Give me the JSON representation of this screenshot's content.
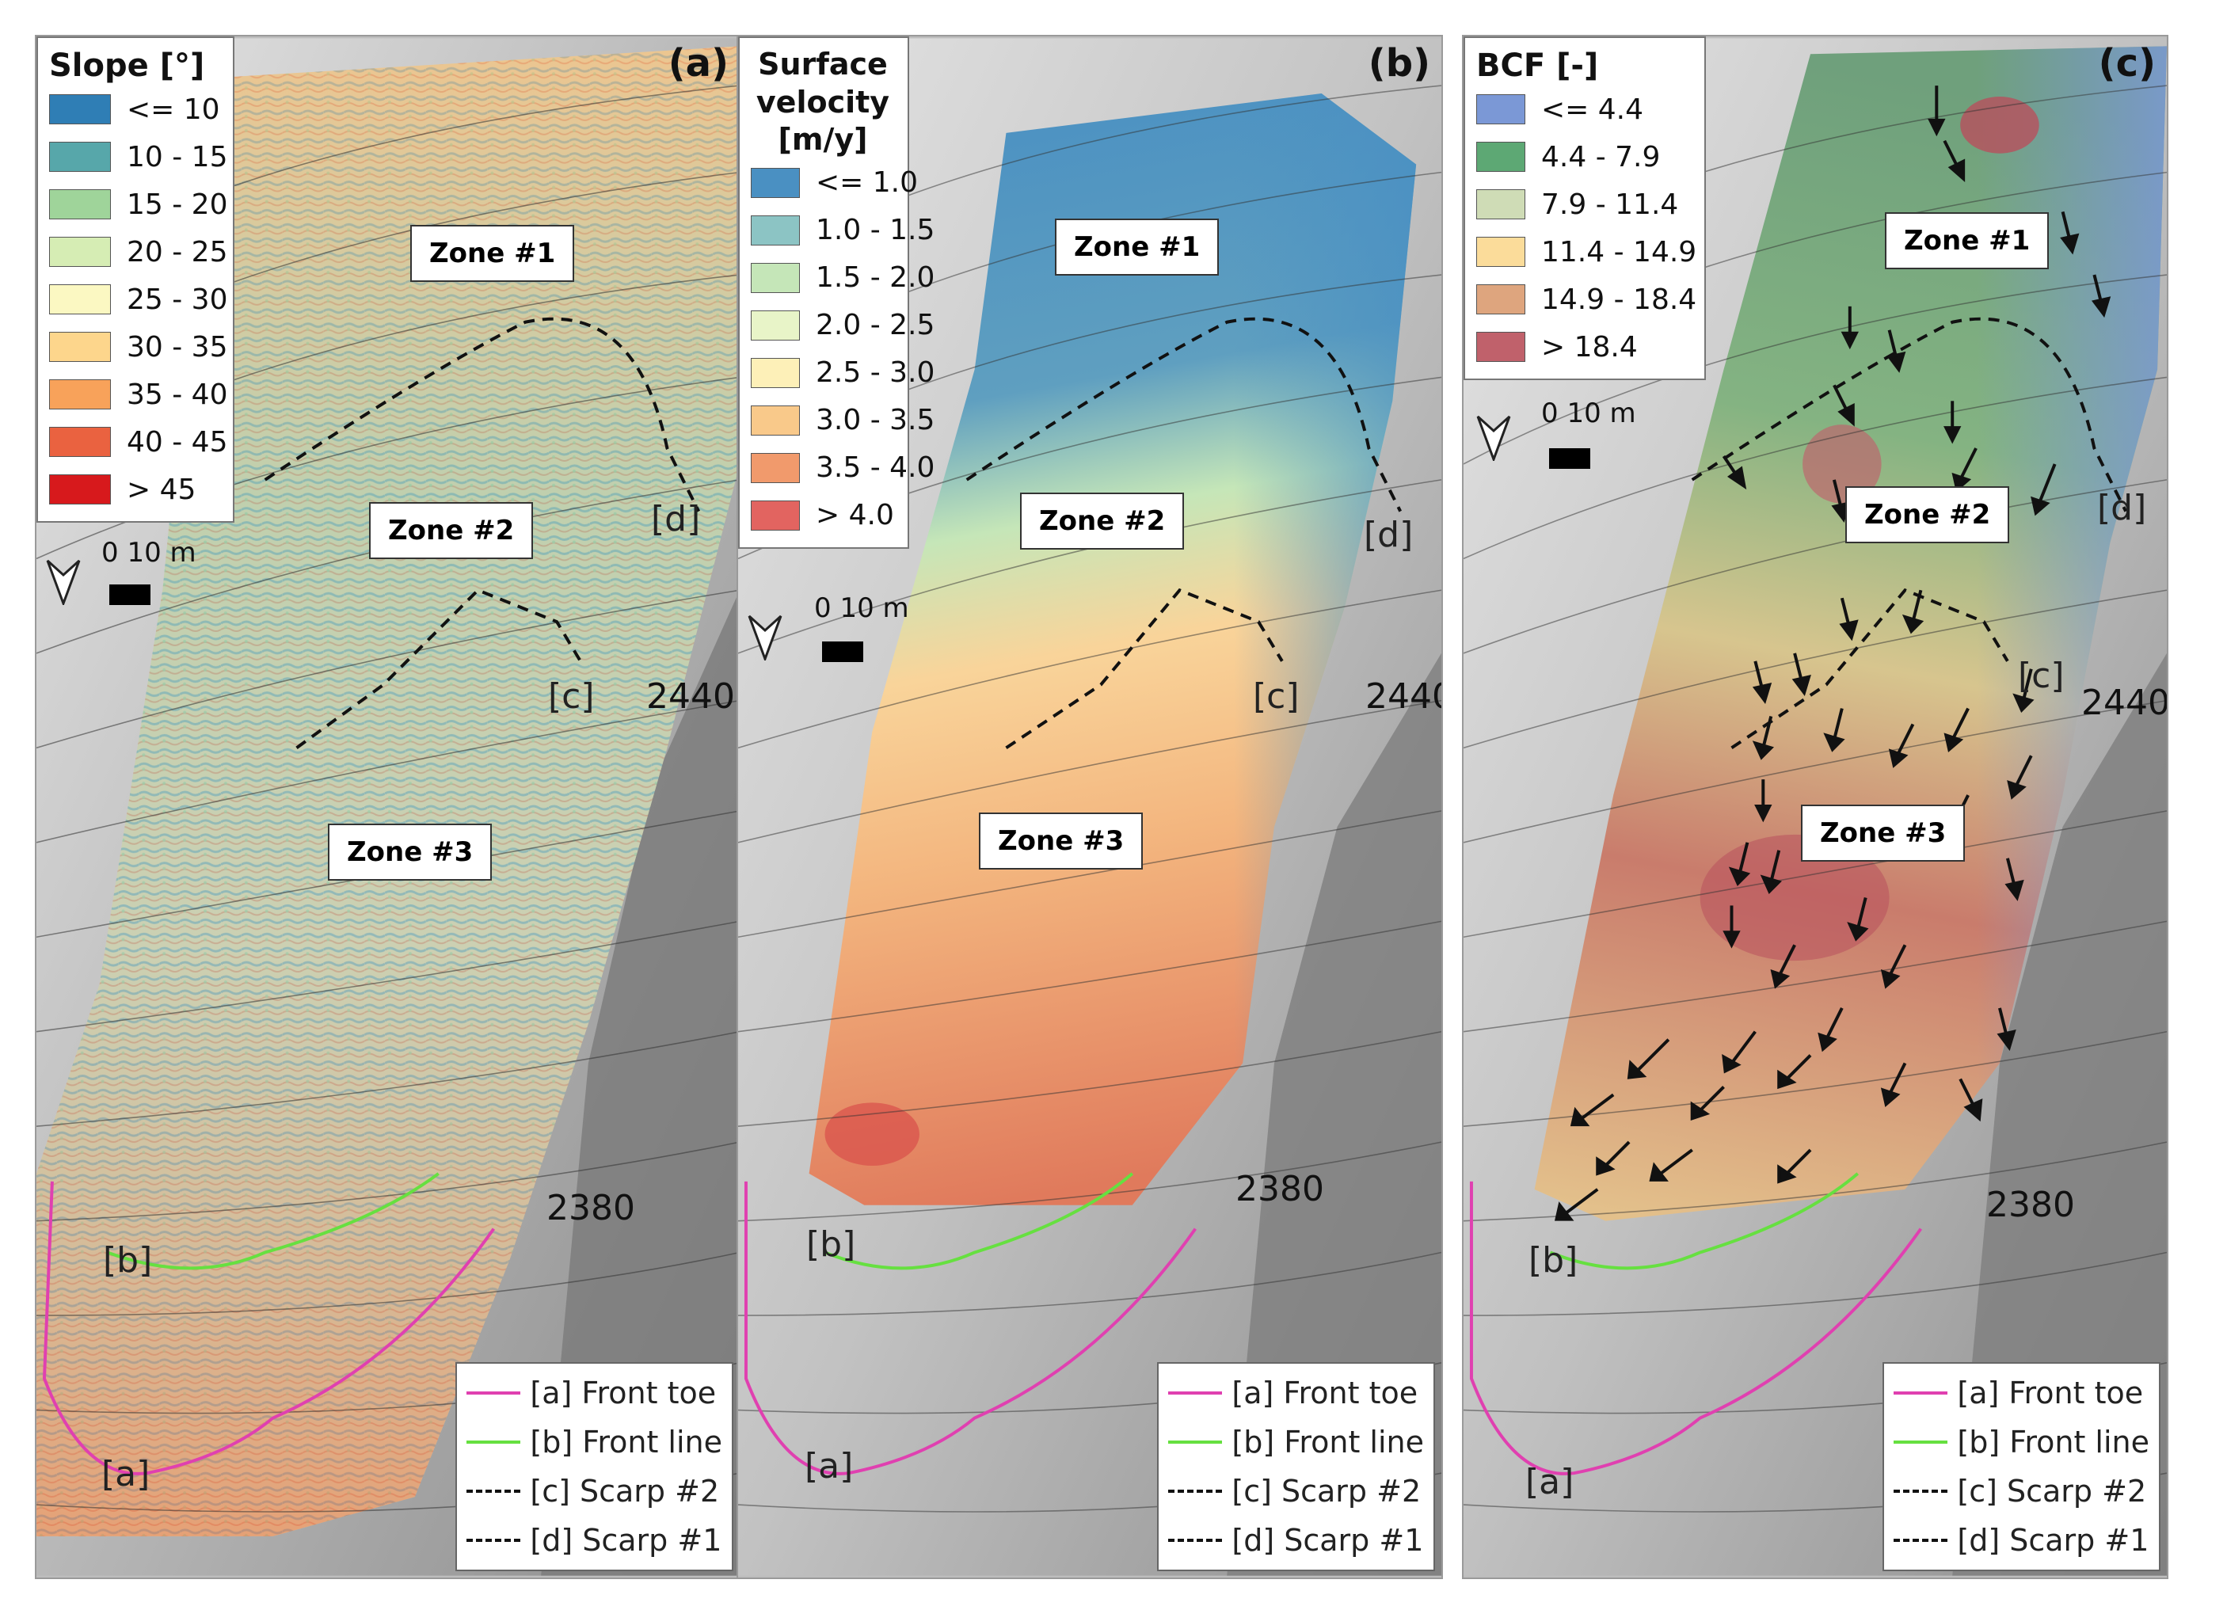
{
  "panels": [
    {
      "letter": "(a)",
      "legend_title": "Slope [°]",
      "legend_items": [
        {
          "label": "<= 10",
          "color": "#2f7eb5"
        },
        {
          "label": "10 - 15",
          "color": "#57a7aa"
        },
        {
          "label": "15 - 20",
          "color": "#9fd49a"
        },
        {
          "label": "20 - 25",
          "color": "#d6edb4"
        },
        {
          "label": "25 - 30",
          "color": "#fbf8c2"
        },
        {
          "label": "30 - 35",
          "color": "#fdd68c"
        },
        {
          "label": "35 - 40",
          "color": "#f8a25a"
        },
        {
          "label": "40 - 45",
          "color": "#ea6240"
        },
        {
          "label": "> 45",
          "color": "#d7191c"
        }
      ],
      "zones": [
        "Zone #1",
        "Zone #2",
        "Zone #3"
      ],
      "markers": [
        "[a]",
        "[b]",
        "[c]",
        "[d]"
      ],
      "elevations": [
        "2440",
        "2380"
      ],
      "scale": "0 10 m",
      "line_legend": [
        "[a] Front toe",
        "[b] Front line",
        "[c] Scarp #2",
        "[d] Scarp #1"
      ]
    },
    {
      "letter": "(b)",
      "legend_title": "Surface velocity [m/y]",
      "legend_items": [
        {
          "label": "<= 1.0",
          "color": "#4a90c2"
        },
        {
          "label": "1.0 - 1.5",
          "color": "#8cc4c4"
        },
        {
          "label": "1.5 - 2.0",
          "color": "#c5e6b8"
        },
        {
          "label": "2.0 - 2.5",
          "color": "#e8f4c8"
        },
        {
          "label": "2.5 - 3.0",
          "color": "#fdf0b8"
        },
        {
          "label": "3.0 - 3.5",
          "color": "#f9c98a"
        },
        {
          "label": "3.5 - 4.0",
          "color": "#f19a6c"
        },
        {
          "label": "> 4.0",
          "color": "#e26460"
        }
      ],
      "zones": [
        "Zone #1",
        "Zone #2",
        "Zone #3"
      ],
      "markers": [
        "[a]",
        "[b]",
        "[c]",
        "[d]"
      ],
      "elevations": [
        "2440",
        "2380"
      ],
      "scale": "0 10 m",
      "line_legend": [
        "[a] Front toe",
        "[b] Front line",
        "[c] Scarp #2",
        "[d] Scarp #1"
      ]
    },
    {
      "letter": "(c)",
      "legend_title": "BCF [-]",
      "legend_items": [
        {
          "label": "<= 4.4",
          "color": "#7b98d6"
        },
        {
          "label": "4.4 - 7.9",
          "color": "#5da874"
        },
        {
          "label": "7.9 - 11.4",
          "color": "#cfdcb6"
        },
        {
          "label": "11.4 - 14.9",
          "color": "#fbdc9a"
        },
        {
          "label": "14.9 - 18.4",
          "color": "#dea57e"
        },
        {
          "label": "> 18.4",
          "color": "#c0616b"
        }
      ],
      "zones": [
        "Zone #1",
        "Zone #2",
        "Zone #3"
      ],
      "markers": [
        "[a]",
        "[b]",
        "[c]",
        "[d]"
      ],
      "elevations": [
        "2440",
        "2380"
      ],
      "scale": "0 10 m",
      "line_legend": [
        "[a] Front toe",
        "[b] Front line",
        "[c] Scarp #2",
        "[d] Scarp #1"
      ]
    }
  ],
  "line_colors": {
    "front_toe": "#e040b0",
    "front_line": "#66e040",
    "scarp": "#111111"
  }
}
